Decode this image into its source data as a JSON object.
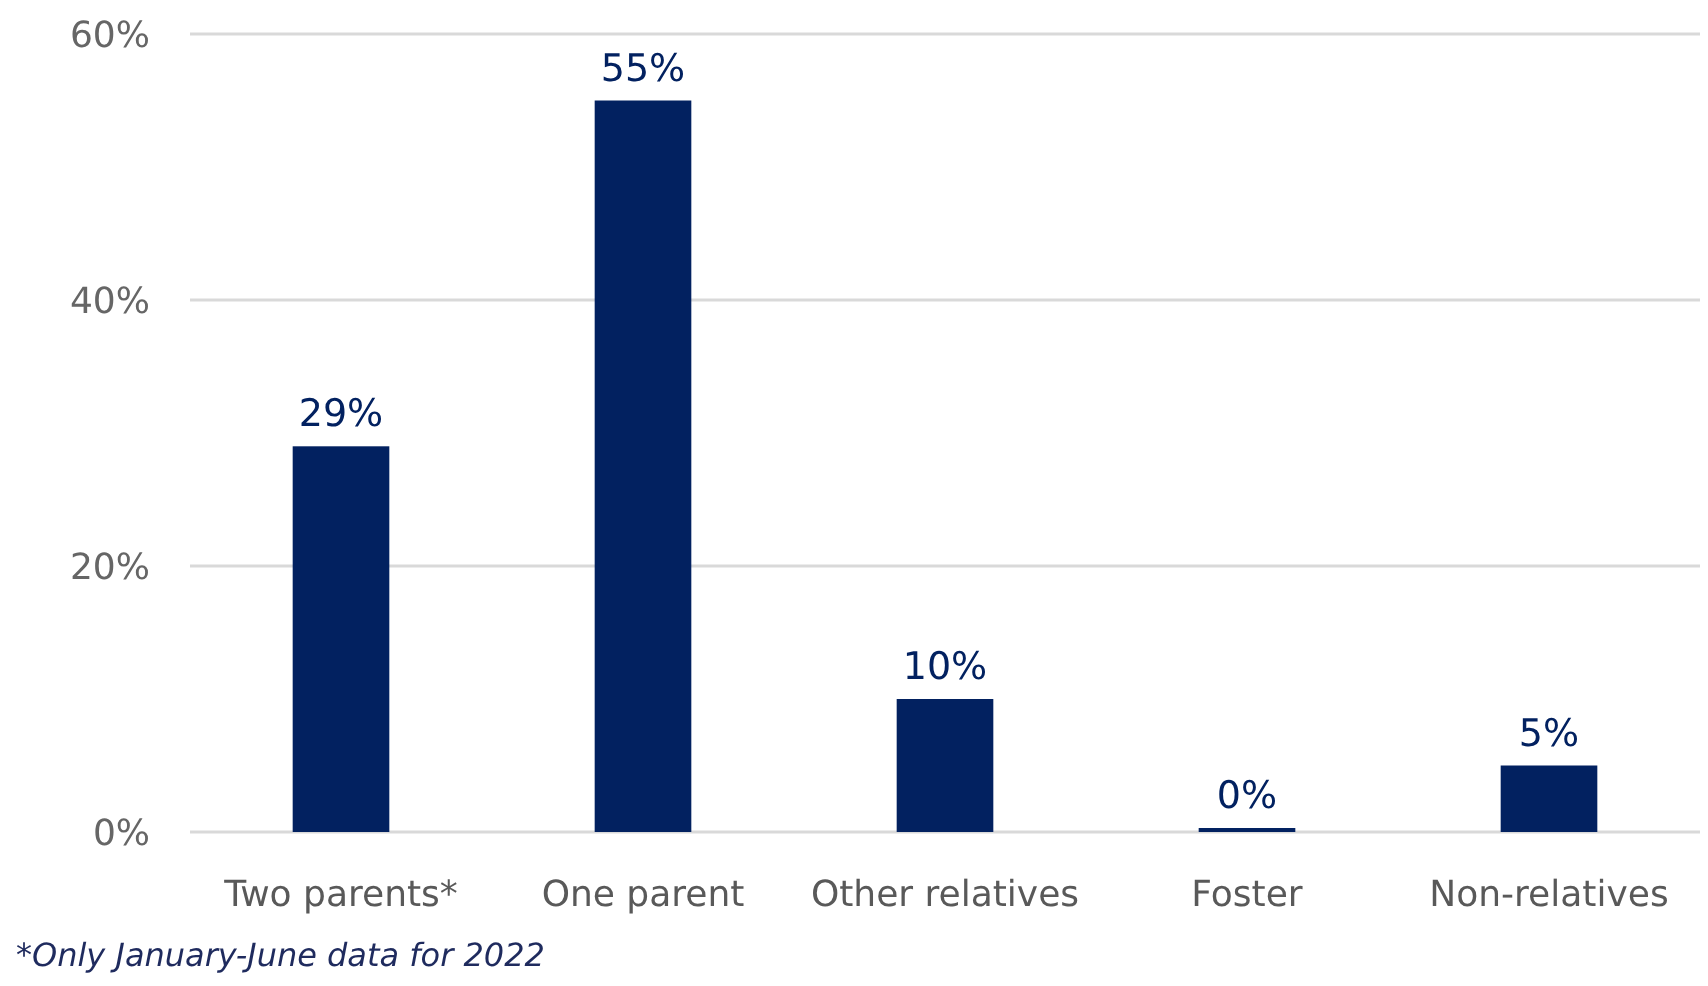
{
  "chart_data": {
    "type": "bar",
    "categories": [
      "Two parents*",
      "One parent",
      "Other relatives",
      "Foster",
      "Non-relatives"
    ],
    "values": [
      29,
      55,
      10,
      0.3,
      5
    ],
    "value_labels": [
      "29%",
      "55%",
      "10%",
      "0%",
      "5%"
    ],
    "color": "#022160",
    "ylim": [
      0,
      60
    ],
    "yticks": [
      {
        "value": 0,
        "label": "0%"
      },
      {
        "value": 20,
        "label": "20%"
      },
      {
        "value": 40,
        "label": "40%"
      },
      {
        "value": 60,
        "label": "60%"
      }
    ],
    "grid": "y",
    "annotations": [
      "*Only January-June data for 2022"
    ]
  }
}
